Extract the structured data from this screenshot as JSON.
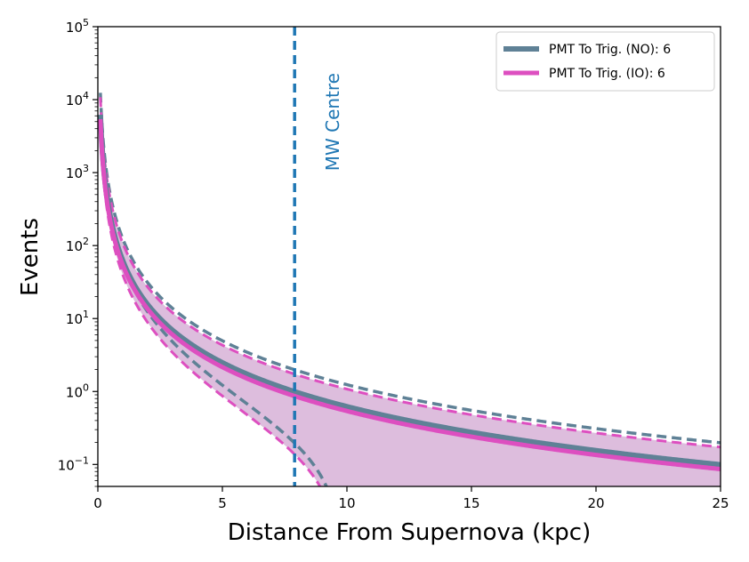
{
  "chart_data": {
    "type": "line",
    "title": "",
    "xlabel": "Distance From Supernova (kpc)",
    "ylabel": "Events",
    "xlim": [
      0,
      25
    ],
    "ylim": [
      0.05,
      100000
    ],
    "yscale": "log",
    "x_ticks": [
      "0",
      "5",
      "10",
      "15",
      "20",
      "25"
    ],
    "x_tick_values": [
      0,
      5,
      10,
      15,
      20,
      25
    ],
    "y_ticks": [
      {
        "value": 0.1,
        "base": "10",
        "exp": "−1"
      },
      {
        "value": 1,
        "base": "10",
        "exp": "0"
      },
      {
        "value": 10,
        "base": "10",
        "exp": "1"
      },
      {
        "value": 100,
        "base": "10",
        "exp": "2"
      },
      {
        "value": 1000,
        "base": "10",
        "exp": "3"
      },
      {
        "value": 10000,
        "base": "10",
        "exp": "4"
      },
      {
        "value": 100000,
        "base": "10",
        "exp": "5"
      }
    ],
    "vline": {
      "x": 7.9,
      "label": "MW Centre",
      "color": "#1f77b4"
    },
    "legend": {
      "placement": "top-right",
      "entries": [
        {
          "label": "PMT To Trig. (NO): 6",
          "color": "#5f8196"
        },
        {
          "label": "PMT To Trig. (IO): 6",
          "color": "#dd4fc0"
        }
      ]
    },
    "series": [
      {
        "name": "PMT To Trig. (NO): 6",
        "color": "#5f8196",
        "k": 62,
        "upper_factor": 2.0,
        "lower_offset": 0.8,
        "lower_scale": 1.0
      },
      {
        "name": "PMT To Trig. (IO): 6",
        "color": "#dd4fc0",
        "k": 54,
        "upper_factor": 2.0,
        "lower_offset": 0.75,
        "lower_scale": 0.82
      }
    ],
    "band_color": "#ddbddd"
  }
}
